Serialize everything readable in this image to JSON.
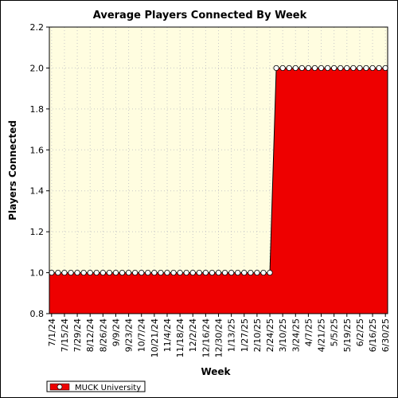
{
  "chart_data": {
    "type": "area",
    "title": "Average Players Connected By Week",
    "xlabel": "Week",
    "ylabel": "Players Connected",
    "ylim": [
      0.8,
      2.2
    ],
    "yticks": [
      "0.8",
      "1.0",
      "1.2",
      "1.4",
      "1.6",
      "1.8",
      "2.0",
      "2.2"
    ],
    "x_tick_labels": [
      "7/1/24",
      "7/15/24",
      "7/29/24",
      "8/12/24",
      "8/26/24",
      "9/9/24",
      "9/23/24",
      "10/7/24",
      "10/21/24",
      "11/4/24",
      "11/18/24",
      "12/2/24",
      "12/16/24",
      "12/30/24",
      "1/13/25",
      "1/27/25",
      "2/10/25",
      "2/24/25",
      "3/10/25",
      "3/24/25",
      "4/7/25",
      "4/21/25",
      "5/5/25",
      "5/19/25",
      "6/2/25",
      "6/16/25",
      "6/30/25"
    ],
    "grid": true,
    "legend_position": "bottom-left",
    "series": [
      {
        "name": "MUCK University",
        "color": "#ee0000",
        "x": [
          "7/1/24",
          "7/8/24",
          "7/15/24",
          "7/22/24",
          "7/29/24",
          "8/5/24",
          "8/12/24",
          "8/19/24",
          "8/26/24",
          "9/2/24",
          "9/9/24",
          "9/16/24",
          "9/23/24",
          "9/30/24",
          "10/7/24",
          "10/14/24",
          "10/21/24",
          "10/28/24",
          "11/4/24",
          "11/11/24",
          "11/18/24",
          "11/25/24",
          "12/2/24",
          "12/9/24",
          "12/16/24",
          "12/23/24",
          "12/30/24",
          "1/6/25",
          "1/13/25",
          "1/20/25",
          "1/27/25",
          "2/3/25",
          "2/10/25",
          "2/17/25",
          "2/24/25",
          "3/3/25",
          "3/10/25",
          "3/17/25",
          "3/24/25",
          "3/31/25",
          "4/7/25",
          "4/14/25",
          "4/21/25",
          "4/28/25",
          "5/5/25",
          "5/12/25",
          "5/19/25",
          "5/26/25",
          "6/2/25",
          "6/9/25",
          "6/16/25",
          "6/23/25",
          "6/30/25"
        ],
        "values": [
          1,
          1,
          1,
          1,
          1,
          1,
          1,
          1,
          1,
          1,
          1,
          1,
          1,
          1,
          1,
          1,
          1,
          1,
          1,
          1,
          1,
          1,
          1,
          1,
          1,
          1,
          1,
          1,
          1,
          1,
          1,
          1,
          1,
          1,
          1,
          2,
          2,
          2,
          2,
          2,
          2,
          2,
          2,
          2,
          2,
          2,
          2,
          2,
          2,
          2,
          2,
          2,
          2
        ]
      }
    ]
  }
}
